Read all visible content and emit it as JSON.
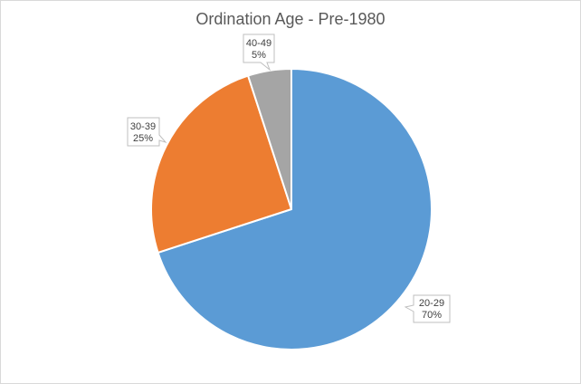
{
  "chart_data": {
    "type": "pie",
    "title": "Ordination Age - Pre-1980",
    "start_angle_deg": 0,
    "direction": "clockwise",
    "legend": "none",
    "slices": [
      {
        "category": "20-29",
        "value": 70,
        "label": "70%",
        "color": "#5b9bd5"
      },
      {
        "category": "30-39",
        "value": 25,
        "label": "25%",
        "color": "#ed7d31"
      },
      {
        "category": "40-49",
        "value": 5,
        "label": "5%",
        "color": "#a5a5a5"
      }
    ]
  }
}
